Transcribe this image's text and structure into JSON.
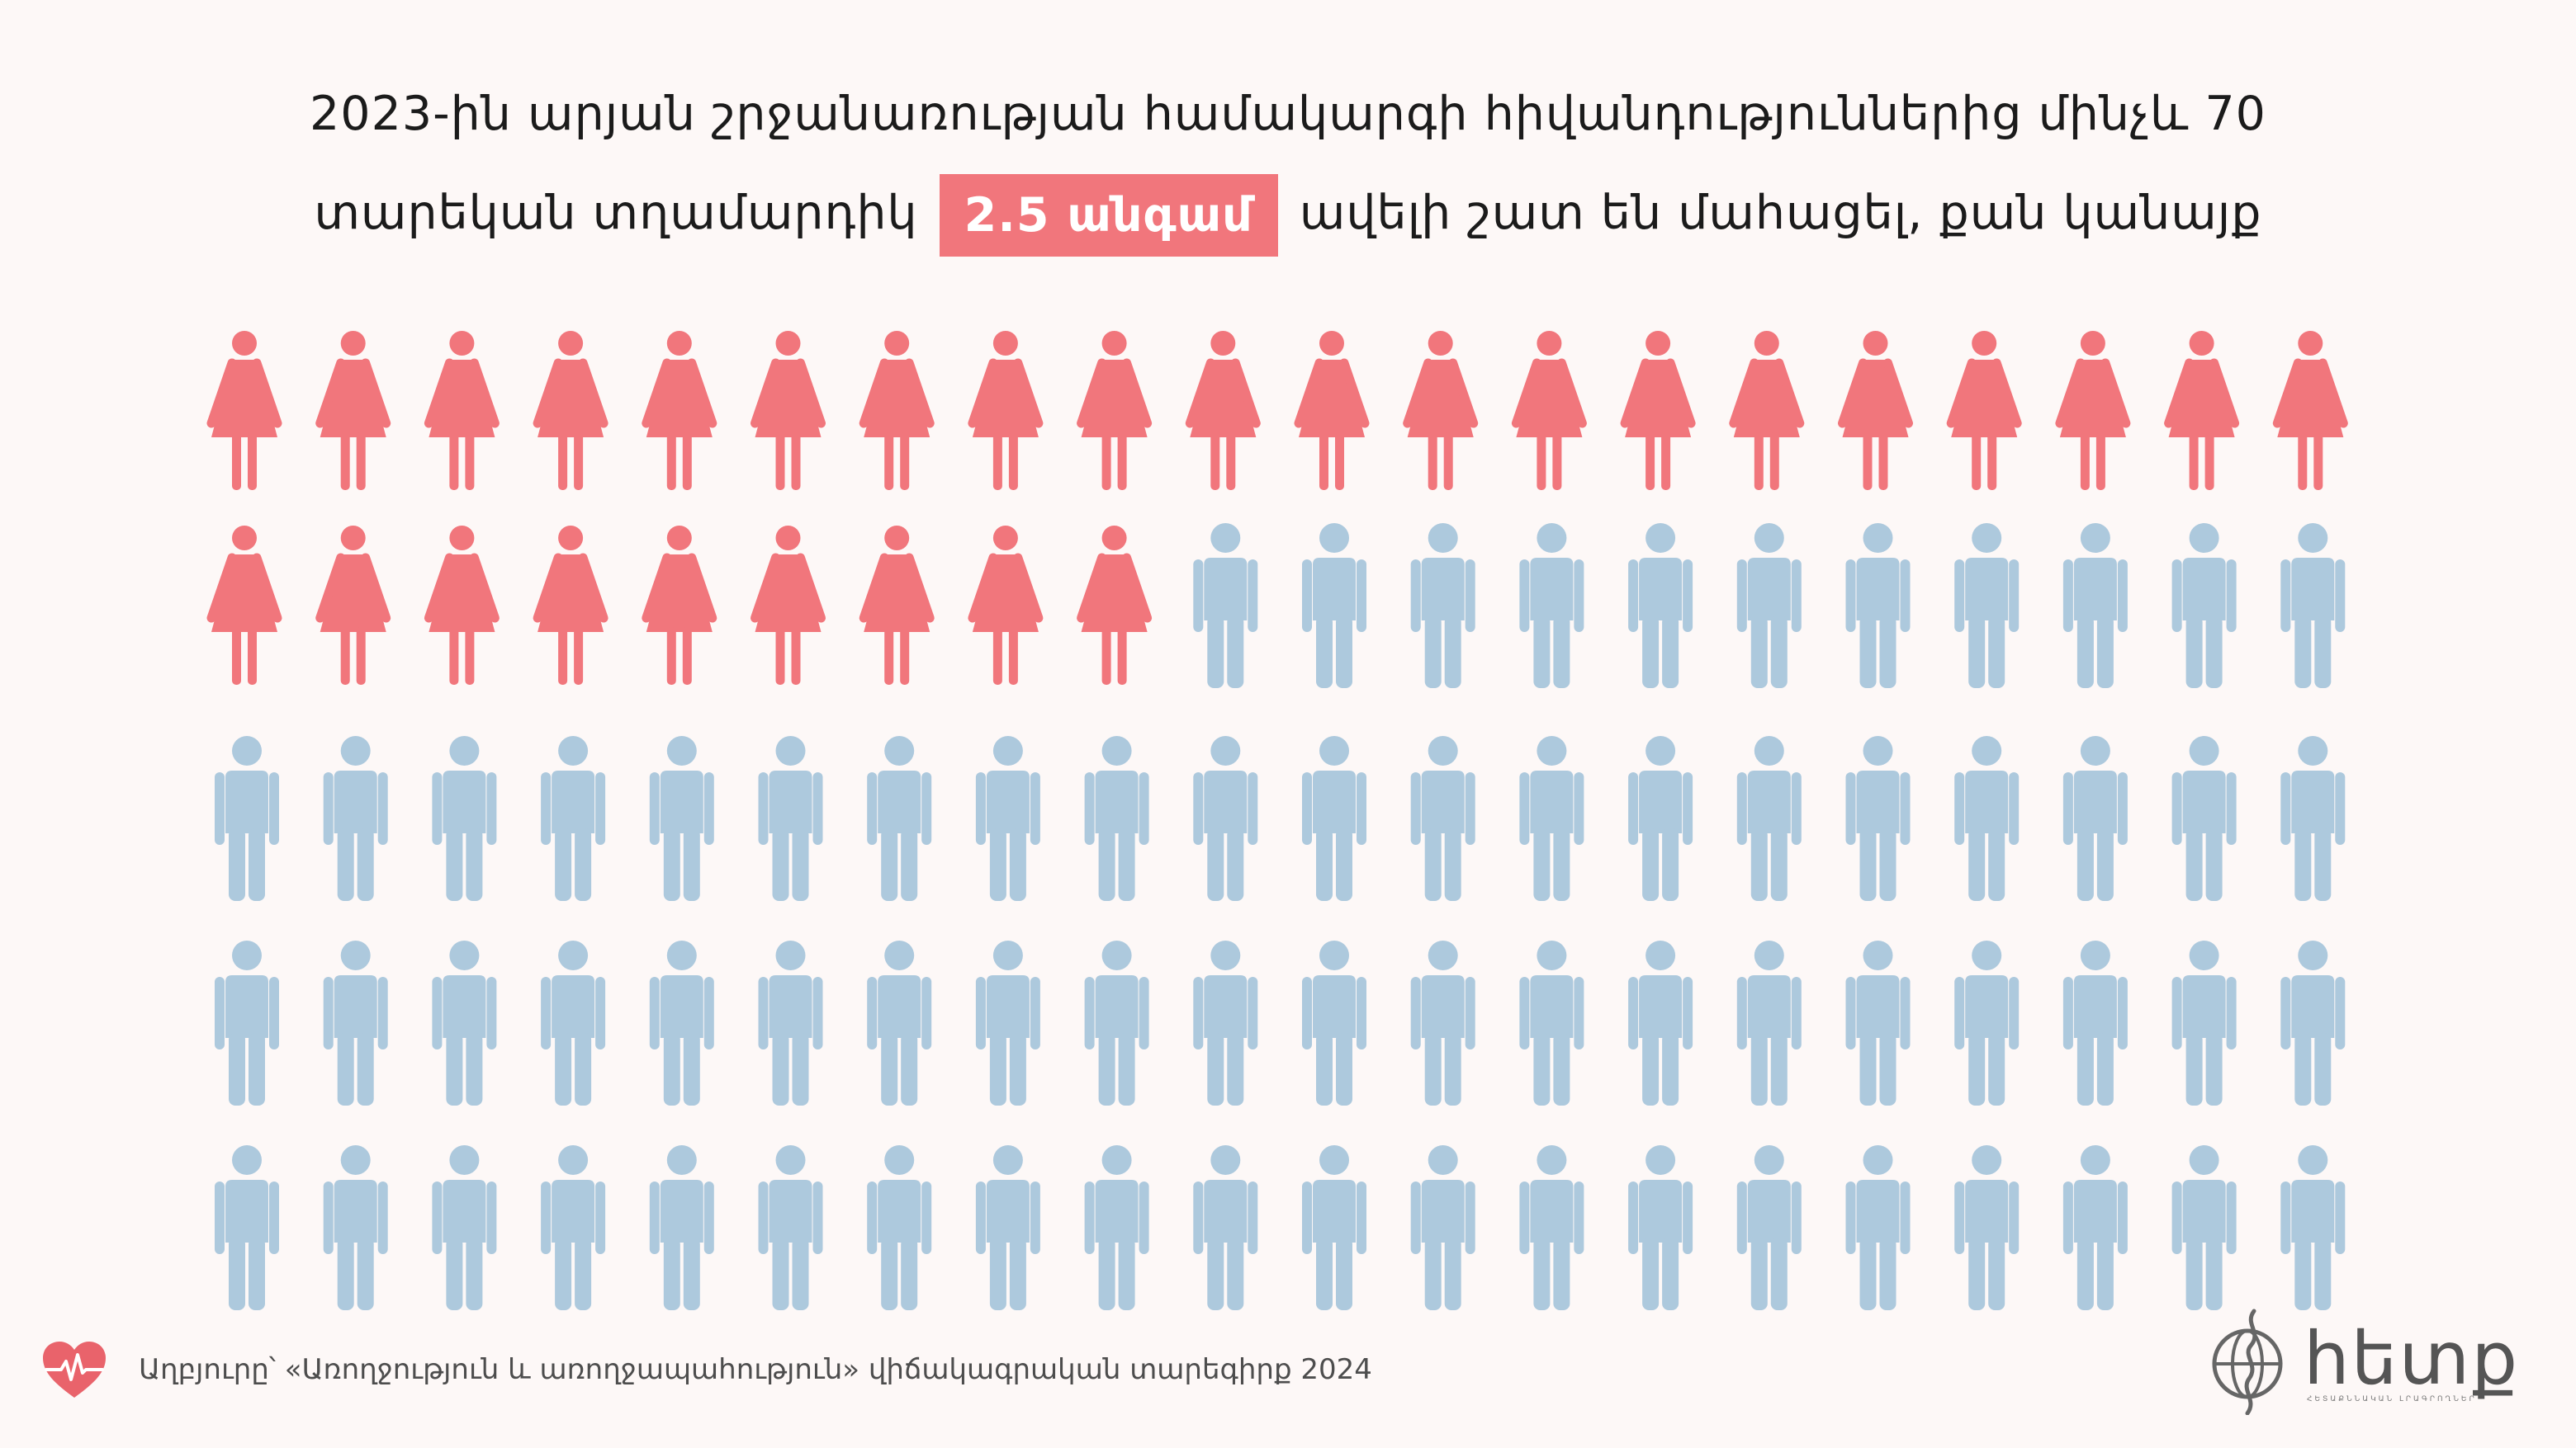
{
  "headline": {
    "line1": "2023-ին արյան շրջանառության համակարգի հիվանդություններից մինչև 70",
    "line2_before": "տարեկան տղամարդիկ",
    "highlight": "2.5 անգամ",
    "line2_after": "ավելի շատ են մահացել, քան կանայք"
  },
  "chart_data": {
    "type": "pictogram",
    "grid": {
      "rows": 5,
      "columns": 20
    },
    "categories": [
      {
        "icon": "woman-icon",
        "count": 29,
        "color": "#f1767c"
      },
      {
        "icon": "man-icon",
        "count": 71,
        "color": "#adc9dd"
      }
    ]
  },
  "footer": {
    "heart_icon": "heart-pulse-icon",
    "heart_color": "#e9636b",
    "source": "Աղբյուրը՝ «Առողջություն և առողջապահություն» վիճակագրական տարեգիրք 2024"
  },
  "logo": {
    "icon": "globe-logo-icon",
    "text": "հետք",
    "subtitle": "ՀԵՏԱՔՆՆԱԿԱՆ ԼՐԱԳՐՈՂՆԵՐ"
  }
}
